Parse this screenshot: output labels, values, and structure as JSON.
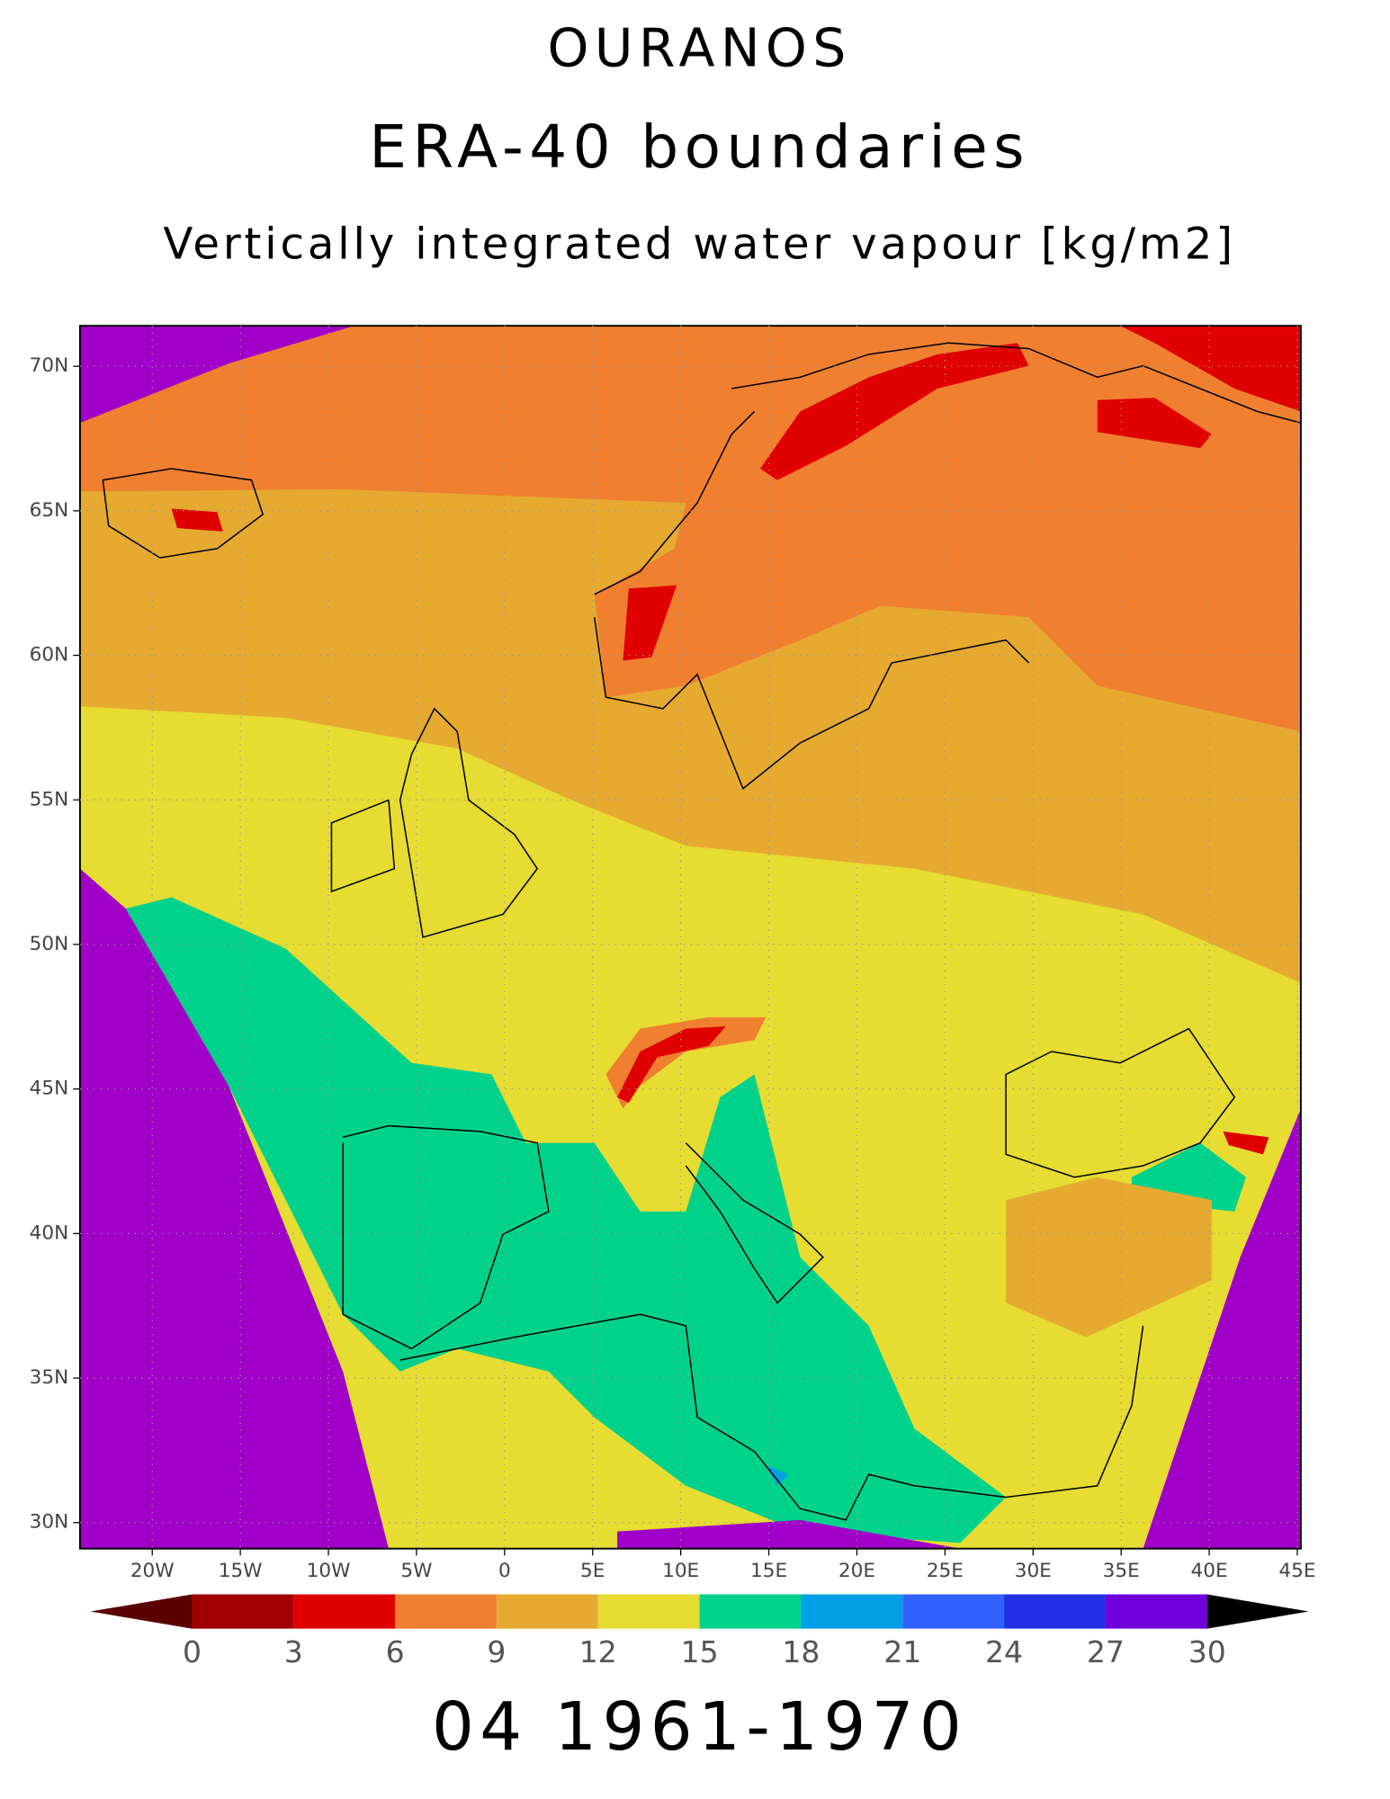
{
  "title": "OURANOS",
  "subtitle": "ERA-40 boundaries",
  "variable": "Vertically integrated water vapour [kg/m2]",
  "map": {
    "xlim": [
      -24.1,
      45.2
    ],
    "ylim": [
      29.1,
      71.4
    ],
    "xticks": [
      {
        "value": -20,
        "label": "20W"
      },
      {
        "value": -15,
        "label": "15W"
      },
      {
        "value": -10,
        "label": "10W"
      },
      {
        "value": -5,
        "label": "5W"
      },
      0,
      {
        "value": 5,
        "label": "5E"
      },
      {
        "value": 10,
        "label": "10E"
      },
      {
        "value": 15,
        "label": "15E"
      },
      {
        "value": 20,
        "label": "20E"
      },
      {
        "value": 25,
        "label": "25E"
      },
      {
        "value": 30,
        "label": "30E"
      },
      {
        "value": 35,
        "label": "35E"
      },
      {
        "value": 40,
        "label": "40E"
      },
      {
        "value": 45,
        "label": "45E"
      }
    ],
    "yticks": [
      {
        "value": 30,
        "label": "30N"
      },
      {
        "value": 35,
        "label": "35N"
      },
      {
        "value": 40,
        "label": "40N"
      },
      {
        "value": 45,
        "label": "45N"
      },
      {
        "value": 50,
        "label": "50N"
      },
      {
        "value": 55,
        "label": "55N"
      },
      {
        "value": 60,
        "label": "60N"
      },
      {
        "value": 65,
        "label": "65N"
      },
      {
        "value": 70,
        "label": "70N"
      }
    ],
    "grid": true
  },
  "colorbar": {
    "levels": [
      0,
      3,
      6,
      9,
      12,
      15,
      18,
      21,
      24,
      27,
      30
    ],
    "colors": [
      "#5a0000",
      "#a00000",
      "#e00000",
      "#f08030",
      "#e6aa30",
      "#e6dc32",
      "#00d28c",
      "#00a0e6",
      "#3060ff",
      "#2030e6",
      "#7000dc",
      "#a000c8"
    ]
  },
  "footer": "04 1961-1970"
}
